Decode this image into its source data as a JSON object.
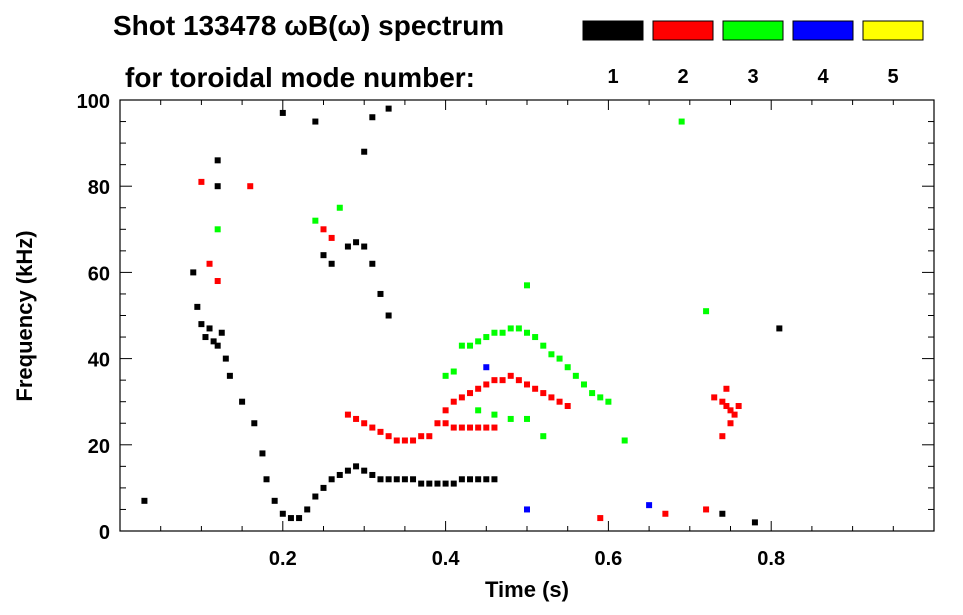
{
  "header": {
    "title_line1": "Shot 133478 ωB(ω) spectrum",
    "title_line2": "for toroidal mode number:"
  },
  "legend": [
    {
      "label": "1",
      "color": "#000000"
    },
    {
      "label": "2",
      "color": "#ff0000"
    },
    {
      "label": "3",
      "color": "#00ff00"
    },
    {
      "label": "4",
      "color": "#0000ff"
    },
    {
      "label": "5",
      "color": "#ffff00"
    }
  ],
  "chart_data": {
    "type": "scatter",
    "title": "Shot 133478 ωB(ω) spectrum",
    "subtitle": "for toroidal mode number:",
    "xlabel": "Time (s)",
    "ylabel": "Frequency (kHz)",
    "xlim": [
      0.0,
      1.0
    ],
    "ylim": [
      0,
      100
    ],
    "x_ticks": [
      0.2,
      0.4,
      0.6,
      0.8
    ],
    "x_tick_labels": [
      "0.2",
      "0.4",
      "0.6",
      "0.8"
    ],
    "y_ticks": [
      0,
      20,
      40,
      60,
      80,
      100
    ],
    "y_tick_labels": [
      "0",
      "20",
      "40",
      "60",
      "80",
      "100"
    ],
    "legend_position": "top-right",
    "series": [
      {
        "name": "1",
        "color": "#000000",
        "points": [
          [
            0.09,
            60
          ],
          [
            0.095,
            52
          ],
          [
            0.1,
            48
          ],
          [
            0.105,
            45
          ],
          [
            0.11,
            47
          ],
          [
            0.115,
            44
          ],
          [
            0.12,
            43
          ],
          [
            0.125,
            46
          ],
          [
            0.13,
            40
          ],
          [
            0.135,
            36
          ],
          [
            0.15,
            30
          ],
          [
            0.165,
            25
          ],
          [
            0.175,
            18
          ],
          [
            0.18,
            12
          ],
          [
            0.19,
            7
          ],
          [
            0.2,
            4
          ],
          [
            0.21,
            3
          ],
          [
            0.22,
            3
          ],
          [
            0.23,
            5
          ],
          [
            0.24,
            8
          ],
          [
            0.25,
            10
          ],
          [
            0.26,
            12
          ],
          [
            0.27,
            13
          ],
          [
            0.28,
            14
          ],
          [
            0.29,
            15
          ],
          [
            0.3,
            14
          ],
          [
            0.31,
            13
          ],
          [
            0.32,
            12
          ],
          [
            0.33,
            12
          ],
          [
            0.34,
            12
          ],
          [
            0.35,
            12
          ],
          [
            0.36,
            12
          ],
          [
            0.37,
            11
          ],
          [
            0.38,
            11
          ],
          [
            0.39,
            11
          ],
          [
            0.4,
            11
          ],
          [
            0.41,
            11
          ],
          [
            0.42,
            12
          ],
          [
            0.43,
            12
          ],
          [
            0.44,
            12
          ],
          [
            0.45,
            12
          ],
          [
            0.46,
            12
          ],
          [
            0.25,
            64
          ],
          [
            0.26,
            62
          ],
          [
            0.28,
            66
          ],
          [
            0.29,
            67
          ],
          [
            0.3,
            66
          ],
          [
            0.31,
            62
          ],
          [
            0.32,
            55
          ],
          [
            0.33,
            50
          ],
          [
            0.12,
            80
          ],
          [
            0.12,
            86
          ],
          [
            0.2,
            97
          ],
          [
            0.24,
            95
          ],
          [
            0.31,
            96
          ],
          [
            0.33,
            98
          ],
          [
            0.3,
            88
          ],
          [
            0.03,
            7
          ],
          [
            0.74,
            4
          ],
          [
            0.78,
            2
          ],
          [
            0.81,
            47
          ]
        ]
      },
      {
        "name": "2",
        "color": "#ff0000",
        "points": [
          [
            0.1,
            81
          ],
          [
            0.11,
            62
          ],
          [
            0.12,
            58
          ],
          [
            0.16,
            80
          ],
          [
            0.25,
            70
          ],
          [
            0.26,
            68
          ],
          [
            0.28,
            27
          ],
          [
            0.29,
            26
          ],
          [
            0.3,
            25
          ],
          [
            0.31,
            24
          ],
          [
            0.32,
            23
          ],
          [
            0.33,
            22
          ],
          [
            0.34,
            21
          ],
          [
            0.35,
            21
          ],
          [
            0.36,
            21
          ],
          [
            0.37,
            22
          ],
          [
            0.38,
            22
          ],
          [
            0.39,
            25
          ],
          [
            0.4,
            28
          ],
          [
            0.41,
            30
          ],
          [
            0.42,
            31
          ],
          [
            0.43,
            32
          ],
          [
            0.44,
            33
          ],
          [
            0.45,
            34
          ],
          [
            0.46,
            35
          ],
          [
            0.47,
            35
          ],
          [
            0.48,
            36
          ],
          [
            0.49,
            35
          ],
          [
            0.5,
            34
          ],
          [
            0.51,
            33
          ],
          [
            0.52,
            32
          ],
          [
            0.53,
            31
          ],
          [
            0.54,
            30
          ],
          [
            0.55,
            29
          ],
          [
            0.4,
            25
          ],
          [
            0.41,
            24
          ],
          [
            0.42,
            24
          ],
          [
            0.43,
            24
          ],
          [
            0.44,
            24
          ],
          [
            0.45,
            24
          ],
          [
            0.46,
            24
          ],
          [
            0.74,
            30
          ],
          [
            0.745,
            29
          ],
          [
            0.75,
            28
          ],
          [
            0.755,
            27
          ],
          [
            0.76,
            29
          ],
          [
            0.73,
            31
          ],
          [
            0.745,
            33
          ],
          [
            0.75,
            25
          ],
          [
            0.74,
            22
          ],
          [
            0.59,
            3
          ],
          [
            0.67,
            4
          ],
          [
            0.72,
            5
          ]
        ]
      },
      {
        "name": "3",
        "color": "#00ff00",
        "points": [
          [
            0.12,
            70
          ],
          [
            0.24,
            72
          ],
          [
            0.27,
            75
          ],
          [
            0.42,
            43
          ],
          [
            0.43,
            43
          ],
          [
            0.44,
            44
          ],
          [
            0.45,
            45
          ],
          [
            0.46,
            46
          ],
          [
            0.47,
            46
          ],
          [
            0.48,
            47
          ],
          [
            0.49,
            47
          ],
          [
            0.5,
            46
          ],
          [
            0.51,
            45
          ],
          [
            0.52,
            43
          ],
          [
            0.53,
            41
          ],
          [
            0.54,
            40
          ],
          [
            0.55,
            38
          ],
          [
            0.56,
            36
          ],
          [
            0.57,
            34
          ],
          [
            0.58,
            32
          ],
          [
            0.59,
            31
          ],
          [
            0.6,
            30
          ],
          [
            0.41,
            37
          ],
          [
            0.4,
            36
          ],
          [
            0.44,
            28
          ],
          [
            0.46,
            27
          ],
          [
            0.48,
            26
          ],
          [
            0.5,
            26
          ],
          [
            0.52,
            22
          ],
          [
            0.5,
            57
          ],
          [
            0.69,
            95
          ],
          [
            0.62,
            21
          ],
          [
            0.72,
            51
          ]
        ]
      },
      {
        "name": "4",
        "color": "#0000ff",
        "points": [
          [
            0.5,
            5
          ],
          [
            0.65,
            6
          ],
          [
            0.45,
            38
          ]
        ]
      },
      {
        "name": "5",
        "color": "#ffff00",
        "points": []
      }
    ]
  }
}
